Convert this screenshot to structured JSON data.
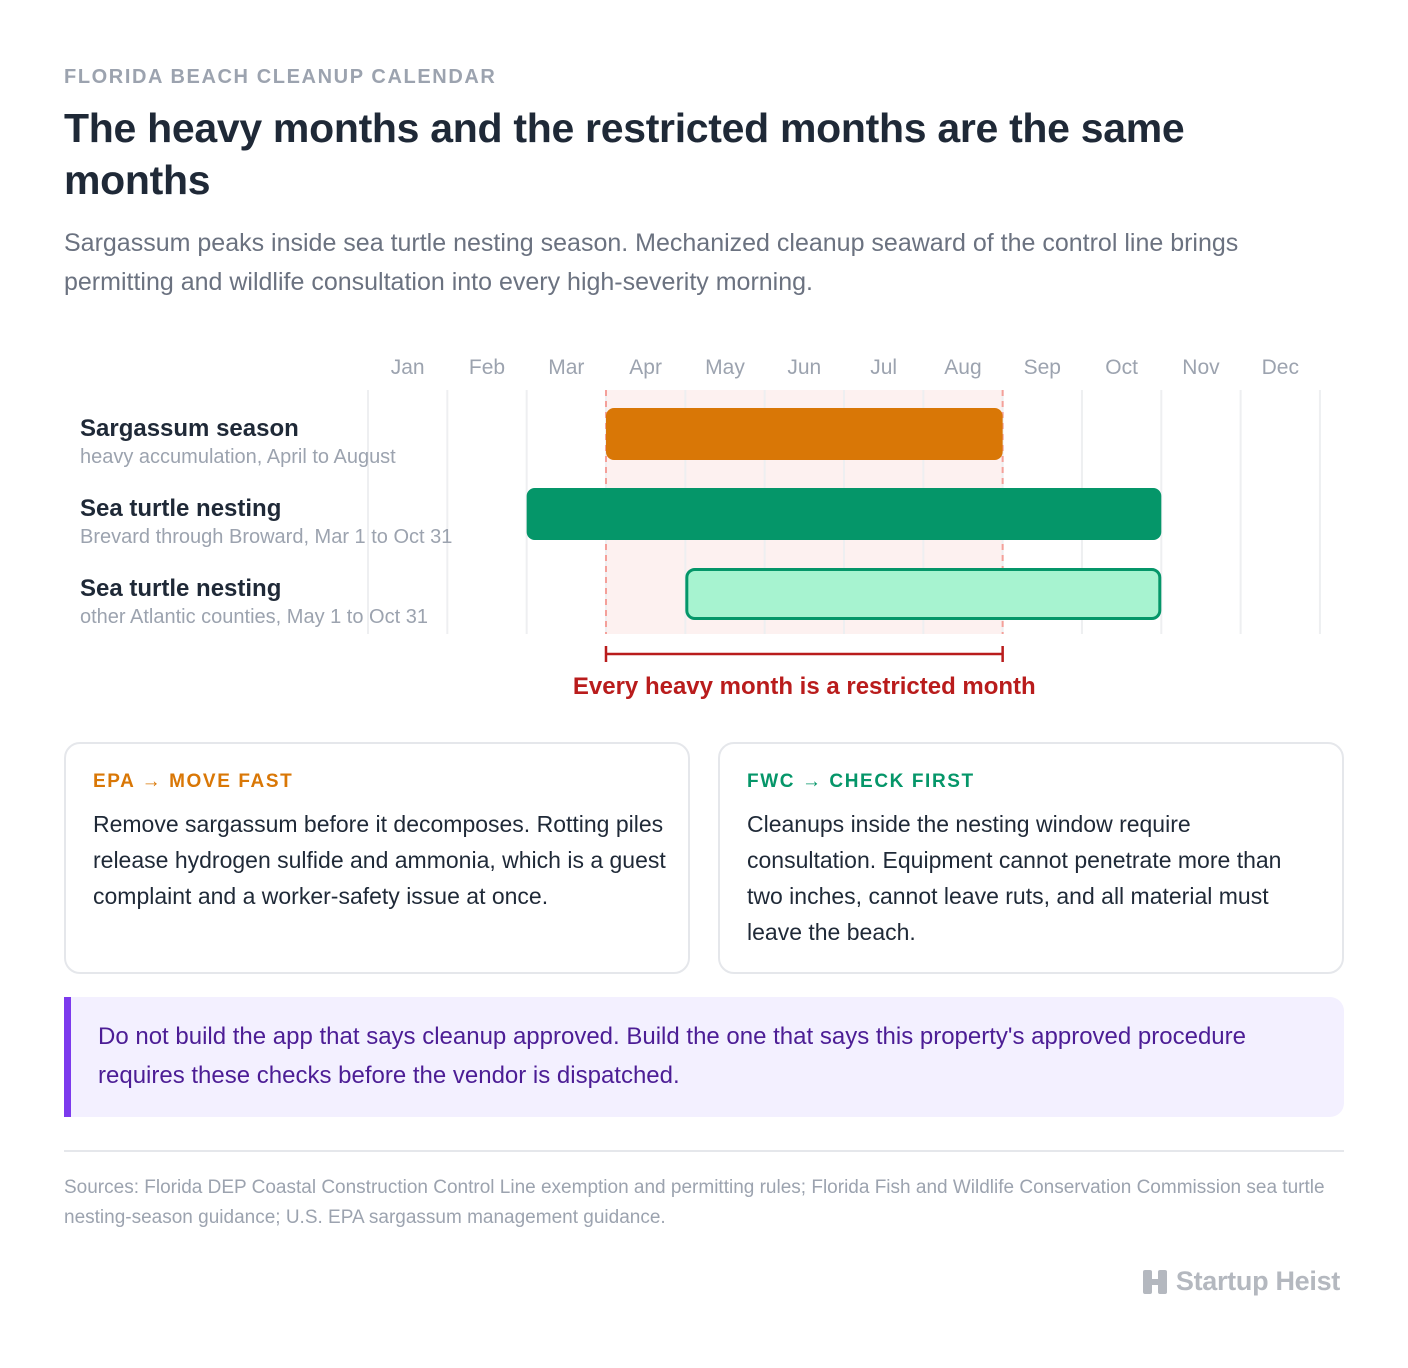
{
  "header": {
    "eyebrow": "FLORIDA BEACH CLEANUP CALENDAR",
    "title": "The heavy months and the restricted months are the same months",
    "subtitle": "Sargassum peaks inside sea turtle nesting season. Mechanized cleanup seaward of the control line brings permitting and wildlife consultation into every high-severity morning."
  },
  "colors": {
    "sargassum": "#d97706",
    "nesting_primary": "#059669",
    "nesting_secondary_fill": "#a7f3d0",
    "nesting_secondary_stroke": "#059669",
    "overlap_band": "#fdf1f0",
    "overlap_line": "#f4a09a",
    "overlap_label": "#b91c1c",
    "callout_accent": "#7c3aed"
  },
  "chart_data": {
    "type": "gantt",
    "months": [
      "Jan",
      "Feb",
      "Mar",
      "Apr",
      "May",
      "Jun",
      "Jul",
      "Aug",
      "Sep",
      "Oct",
      "Nov",
      "Dec"
    ],
    "rows": [
      {
        "label": "Sargassum season",
        "sublabel": "heavy accumulation, April to August",
        "start_month": 4,
        "end_month": 8,
        "style": "sargassum"
      },
      {
        "label": "Sea turtle nesting",
        "sublabel": "Brevard through Broward, Mar 1 to Oct 31",
        "start_month": 3,
        "end_month": 10,
        "style": "nesting_primary"
      },
      {
        "label": "Sea turtle nesting",
        "sublabel": "other Atlantic counties, May 1 to Oct 31",
        "start_month": 5,
        "end_month": 10,
        "style": "nesting_secondary"
      }
    ],
    "highlight": {
      "start_month": 4,
      "end_month": 8,
      "label": "Every heavy month is a restricted month"
    }
  },
  "cards": [
    {
      "kicker": "EPA → MOVE FAST",
      "body": "Remove sargassum before it decomposes. Rotting piles release hydrogen sulfide and ammonia, which is a guest complaint and a worker-safety issue at once."
    },
    {
      "kicker": "FWC → CHECK FIRST",
      "body": "Cleanups inside the nesting window require consultation. Equipment cannot penetrate more than two inches, cannot leave ruts, and all material must leave the beach."
    }
  ],
  "callout": "Do not build the app that says cleanup approved. Build the one that says this property's approved procedure requires these checks before the vendor is dispatched.",
  "sources": "Sources: Florida DEP Coastal Construction Control Line exemption and permitting rules; Florida Fish and Wildlife Conservation Commission sea turtle nesting-season guidance; U.S. EPA sargassum management guidance.",
  "brand": {
    "name": "Startup Heist",
    "icon": "h-block-icon"
  }
}
